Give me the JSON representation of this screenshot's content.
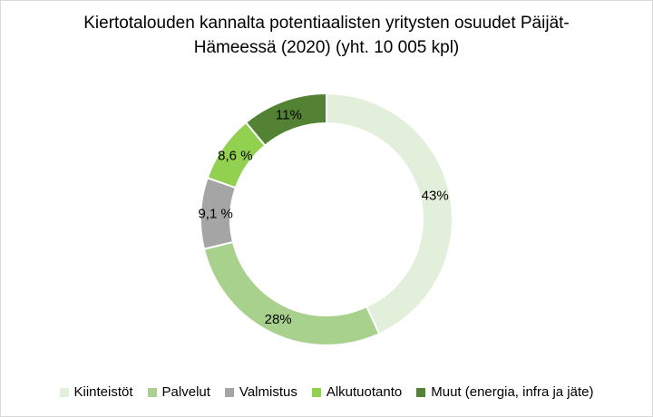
{
  "chart_data": {
    "type": "pie",
    "title_line1": "Kiertotalouden kannalta potentiaalisten yritysten osuudet Päijät-",
    "title_line2": "Hämeessä (2020) (yht. 10 005 kpl)",
    "slices": [
      {
        "name": "Kiinteistöt",
        "value": 43,
        "label": "43%",
        "color": "#e2efda"
      },
      {
        "name": "Palvelut",
        "value": 28,
        "label": "28%",
        "color": "#a9d18e"
      },
      {
        "name": "Valmistus",
        "value": 9.1,
        "label": "9,1 %",
        "color": "#a5a5a5"
      },
      {
        "name": "Alkutuotanto",
        "value": 8.6,
        "label": "8,6 %",
        "color": "#92d050"
      },
      {
        "name": "Muut (energia, infra ja jäte)",
        "value": 11,
        "label": "11%",
        "color": "#548235"
      }
    ],
    "donut": true,
    "legend_position": "bottom"
  }
}
